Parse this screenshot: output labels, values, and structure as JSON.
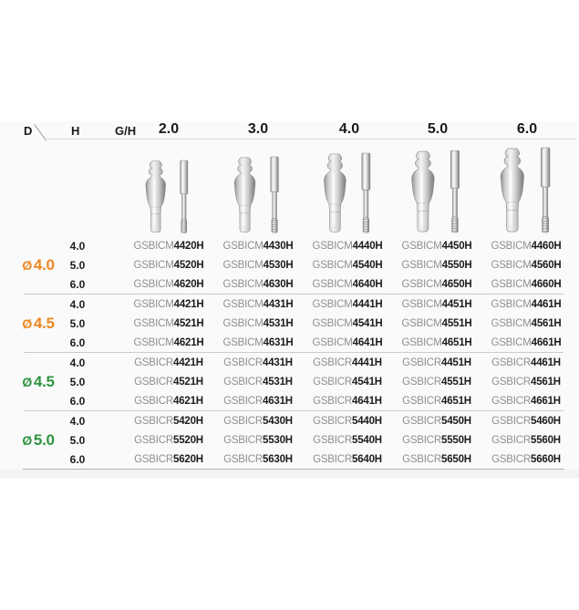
{
  "panel": {
    "corner_d_label": "D",
    "h_label": "H",
    "gh_label": "G/H",
    "size_columns": [
      "2.0",
      "3.0",
      "4.0",
      "5.0",
      "6.0"
    ]
  },
  "colors": {
    "orange": "#EE8722",
    "green": "#2E9540"
  },
  "groups": [
    {
      "diameter_symbol": "Ø",
      "diameter_value": "4.0",
      "color": "orange",
      "rows": [
        {
          "h": "4.0",
          "codes": [
            [
              "GSBICM",
              "4420H"
            ],
            [
              "GSBICM",
              "4430H"
            ],
            [
              "GSBICM",
              "4440H"
            ],
            [
              "GSBICM",
              "4450H"
            ],
            [
              "GSBICM",
              "4460H"
            ]
          ]
        },
        {
          "h": "5.0",
          "codes": [
            [
              "GSBICM",
              "4520H"
            ],
            [
              "GSBICM",
              "4530H"
            ],
            [
              "GSBICM",
              "4540H"
            ],
            [
              "GSBICM",
              "4550H"
            ],
            [
              "GSBICM",
              "4560H"
            ]
          ]
        },
        {
          "h": "6.0",
          "codes": [
            [
              "GSBICM",
              "4620H"
            ],
            [
              "GSBICM",
              "4630H"
            ],
            [
              "GSBICM",
              "4640H"
            ],
            [
              "GSBICM",
              "4650H"
            ],
            [
              "GSBICM",
              "4660H"
            ]
          ]
        }
      ]
    },
    {
      "diameter_symbol": "Ø",
      "diameter_value": "4.5",
      "color": "orange",
      "rows": [
        {
          "h": "4.0",
          "codes": [
            [
              "GSBICM",
              "4421H"
            ],
            [
              "GSBICM",
              "4431H"
            ],
            [
              "GSBICM",
              "4441H"
            ],
            [
              "GSBICM",
              "4451H"
            ],
            [
              "GSBICM",
              "4461H"
            ]
          ]
        },
        {
          "h": "5.0",
          "codes": [
            [
              "GSBICM",
              "4521H"
            ],
            [
              "GSBICM",
              "4531H"
            ],
            [
              "GSBICM",
              "4541H"
            ],
            [
              "GSBICM",
              "4551H"
            ],
            [
              "GSBICM",
              "4561H"
            ]
          ]
        },
        {
          "h": "6.0",
          "codes": [
            [
              "GSBICM",
              "4621H"
            ],
            [
              "GSBICM",
              "4631H"
            ],
            [
              "GSBICM",
              "4641H"
            ],
            [
              "GSBICM",
              "4651H"
            ],
            [
              "GSBICM",
              "4661H"
            ]
          ]
        }
      ]
    },
    {
      "diameter_symbol": "Ø",
      "diameter_value": "4.5",
      "color": "green",
      "rows": [
        {
          "h": "4.0",
          "codes": [
            [
              "GSBICR",
              "4421H"
            ],
            [
              "GSBICR",
              "4431H"
            ],
            [
              "GSBICR",
              "4441H"
            ],
            [
              "GSBICR",
              "4451H"
            ],
            [
              "GSBICR",
              "4461H"
            ]
          ]
        },
        {
          "h": "5.0",
          "codes": [
            [
              "GSBICR",
              "4521H"
            ],
            [
              "GSBICR",
              "4531H"
            ],
            [
              "GSBICR",
              "4541H"
            ],
            [
              "GSBICR",
              "4551H"
            ],
            [
              "GSBICR",
              "4561H"
            ]
          ]
        },
        {
          "h": "6.0",
          "codes": [
            [
              "GSBICR",
              "4621H"
            ],
            [
              "GSBICR",
              "4631H"
            ],
            [
              "GSBICR",
              "4641H"
            ],
            [
              "GSBICR",
              "4651H"
            ],
            [
              "GSBICR",
              "4661H"
            ]
          ]
        }
      ]
    },
    {
      "diameter_symbol": "Ø",
      "diameter_value": "5.0",
      "color": "green",
      "rows": [
        {
          "h": "4.0",
          "codes": [
            [
              "GSBICR",
              "5420H"
            ],
            [
              "GSBICR",
              "5430H"
            ],
            [
              "GSBICR",
              "5440H"
            ],
            [
              "GSBICR",
              "5450H"
            ],
            [
              "GSBICR",
              "5460H"
            ]
          ]
        },
        {
          "h": "5.0",
          "codes": [
            [
              "GSBICR",
              "5520H"
            ],
            [
              "GSBICR",
              "5530H"
            ],
            [
              "GSBICR",
              "5540H"
            ],
            [
              "GSBICR",
              "5550H"
            ],
            [
              "GSBICR",
              "5560H"
            ]
          ]
        },
        {
          "h": "6.0",
          "codes": [
            [
              "GSBICR",
              "5620H"
            ],
            [
              "GSBICR",
              "5630H"
            ],
            [
              "GSBICR",
              "5640H"
            ],
            [
              "GSBICR",
              "5650H"
            ],
            [
              "GSBICR",
              "5660H"
            ]
          ]
        }
      ]
    }
  ]
}
